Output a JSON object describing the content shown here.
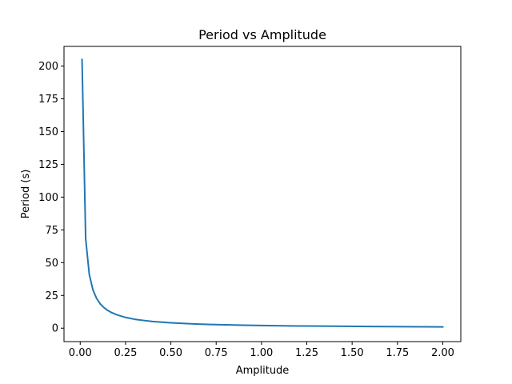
{
  "chart_data": {
    "type": "line",
    "title": "Period vs Amplitude",
    "xlabel": "Amplitude",
    "ylabel": "Period (s)",
    "xlim": [
      -0.0895,
      2.0995
    ],
    "ylim": [
      -10.24,
      215.0
    ],
    "xticks": [
      0.0,
      0.25,
      0.5,
      0.75,
      1.0,
      1.25,
      1.5,
      1.75,
      2.0
    ],
    "xtick_labels": [
      "0.00",
      "0.25",
      "0.50",
      "0.75",
      "1.00",
      "1.25",
      "1.50",
      "1.75",
      "2.00"
    ],
    "yticks": [
      0,
      25,
      50,
      75,
      100,
      125,
      150,
      175,
      200
    ],
    "ytick_labels": [
      "0",
      "25",
      "50",
      "75",
      "100",
      "125",
      "150",
      "175",
      "200"
    ],
    "grid": false,
    "series": [
      {
        "color": "#1f77b4",
        "x": [
          0.01,
          0.03,
          0.05,
          0.07,
          0.09,
          0.11,
          0.13,
          0.15,
          0.17,
          0.2,
          0.25,
          0.3,
          0.35,
          0.4,
          0.5,
          0.6,
          0.7,
          0.8,
          0.9,
          1.0,
          1.2,
          1.4,
          1.6,
          1.8,
          2.0
        ],
        "y": [
          205.0,
          68.3,
          41.0,
          29.3,
          22.8,
          18.6,
          15.8,
          13.7,
          12.1,
          10.3,
          8.2,
          6.8,
          5.9,
          5.1,
          4.1,
          3.4,
          2.9,
          2.6,
          2.3,
          2.05,
          1.7,
          1.5,
          1.3,
          1.15,
          1.0
        ]
      }
    ]
  }
}
